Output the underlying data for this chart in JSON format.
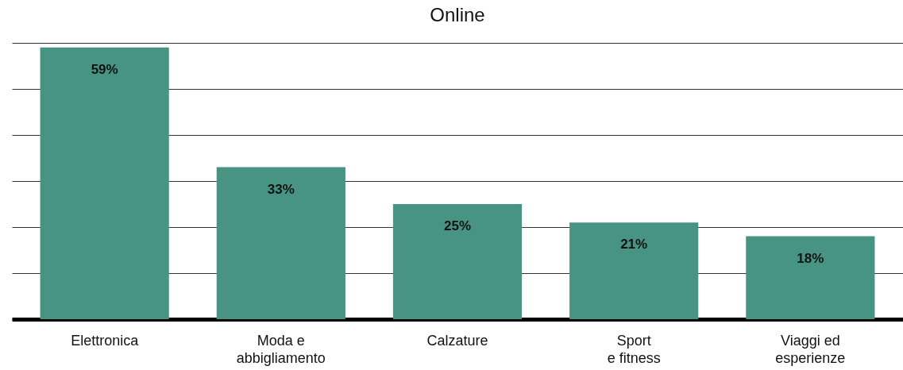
{
  "chart_data": {
    "type": "bar",
    "title": "Online",
    "categories": [
      "Elettronica",
      "Moda e\nabbigliamento",
      "Calzature",
      "Sport\ne fitness",
      "Viaggi ed\nesperienze"
    ],
    "values": [
      59,
      33,
      25,
      21,
      18
    ],
    "value_labels": [
      "59%",
      "33%",
      "25%",
      "21%",
      "18%"
    ],
    "color": "#479485",
    "ylim": [
      0,
      60
    ],
    "yticks": [
      {
        "value": 0,
        "label": null
      },
      {
        "value": 10,
        "label": null
      },
      {
        "value": 20,
        "label": null
      },
      {
        "value": 30,
        "label": null
      },
      {
        "value": 40,
        "label": null
      },
      {
        "value": 50,
        "label": null
      },
      {
        "value": 60,
        "label": null
      }
    ],
    "grid": "y",
    "tick_labels": "x"
  }
}
